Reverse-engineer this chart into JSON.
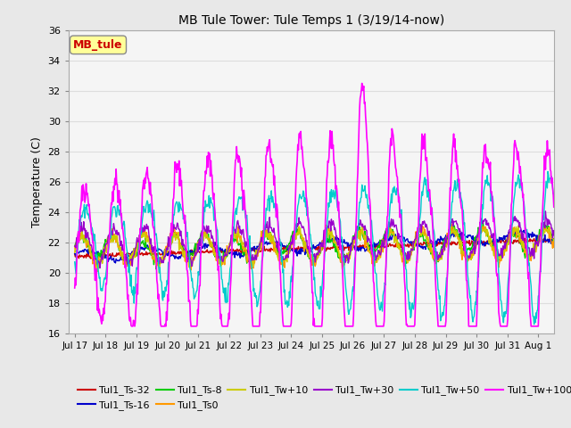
{
  "title": "MB Tule Tower: Tule Temps 1 (3/19/14-now)",
  "ylabel": "Temperature (C)",
  "ylim": [
    16,
    36
  ],
  "yticks": [
    16,
    18,
    20,
    22,
    24,
    26,
    28,
    30,
    32,
    34,
    36
  ],
  "xtick_labels": [
    "Jul 17",
    "Jul 18",
    "Jul 19",
    "Jul 20",
    "Jul 21",
    "Jul 22",
    "Jul 23",
    "Jul 24",
    "Jul 25",
    "Jul 26",
    "Jul 27",
    "Jul 28",
    "Jul 29",
    "Jul 30",
    "Jul 31",
    "Aug 1"
  ],
  "series_colors": {
    "Tul1_Ts-32": "#cc0000",
    "Tul1_Ts-16": "#0000cc",
    "Tul1_Ts-8": "#00cc00",
    "Tul1_Ts0": "#ff9900",
    "Tul1_Tw+10": "#cccc00",
    "Tul1_Tw+30": "#9900cc",
    "Tul1_Tw+50": "#00cccc",
    "Tul1_Tw+100": "#ff00ff"
  },
  "legend_box_color": "#ffff99",
  "legend_box_label": "MB_tule",
  "legend_box_text_color": "#cc0000",
  "background_color": "#e8e8e8",
  "plot_bg_color": "#f5f5f5",
  "grid_color": "#dddddd"
}
